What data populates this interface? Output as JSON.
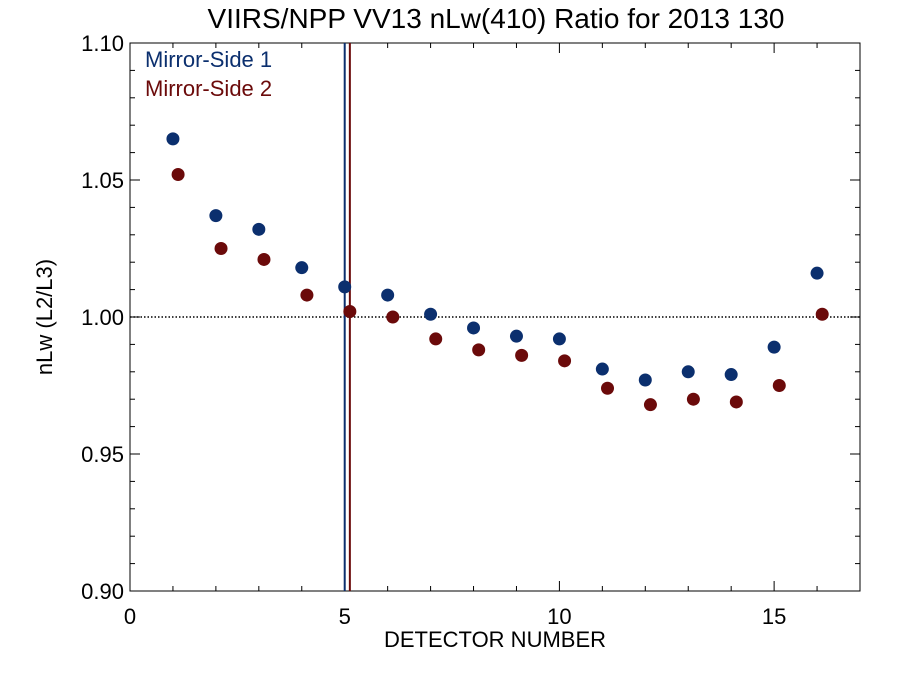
{
  "chart_data": {
    "type": "scatter",
    "title": "VIIRS/NPP VV13 nLw(410) Ratio for 2013 130",
    "xlabel": "DETECTOR NUMBER",
    "ylabel": "nLw (L2/L3)",
    "xlim": [
      0,
      17
    ],
    "ylim": [
      0.9,
      1.1
    ],
    "xticks": [
      0,
      5,
      10,
      15
    ],
    "xtick_labels": [
      "0",
      "5",
      "10",
      "15"
    ],
    "yticks": [
      0.9,
      0.95,
      1.0,
      1.05,
      1.1
    ],
    "ytick_labels": [
      "0.90",
      "0.95",
      "1.00",
      "1.05",
      "1.10"
    ],
    "grid": false,
    "legend_position": "top-left",
    "reference_line": {
      "y": 1.0,
      "style": "dotted"
    },
    "vertical_lines": [
      {
        "x": 5.0,
        "series": "Mirror-Side 1"
      },
      {
        "x": 5.12,
        "series": "Mirror-Side 2"
      }
    ],
    "series": [
      {
        "name": "Mirror-Side 1",
        "color": "#0b2f6e",
        "x": [
          1,
          2,
          3,
          4,
          5,
          6,
          7,
          8,
          9,
          10,
          11,
          12,
          13,
          14,
          15,
          16
        ],
        "y": [
          1.065,
          1.037,
          1.032,
          1.018,
          1.011,
          1.008,
          1.001,
          0.996,
          0.993,
          0.992,
          0.981,
          0.977,
          0.98,
          0.979,
          0.989,
          1.016
        ]
      },
      {
        "name": "Mirror-Side 2",
        "color": "#6b0a0a",
        "x": [
          1.12,
          2.12,
          3.12,
          4.12,
          5.12,
          6.12,
          7.12,
          8.12,
          9.12,
          10.12,
          11.12,
          12.12,
          13.12,
          14.12,
          15.12,
          16.12
        ],
        "y": [
          1.052,
          1.025,
          1.021,
          1.008,
          1.002,
          1.0,
          0.992,
          0.988,
          0.986,
          0.984,
          0.974,
          0.968,
          0.97,
          0.969,
          0.975,
          1.001
        ]
      }
    ]
  }
}
